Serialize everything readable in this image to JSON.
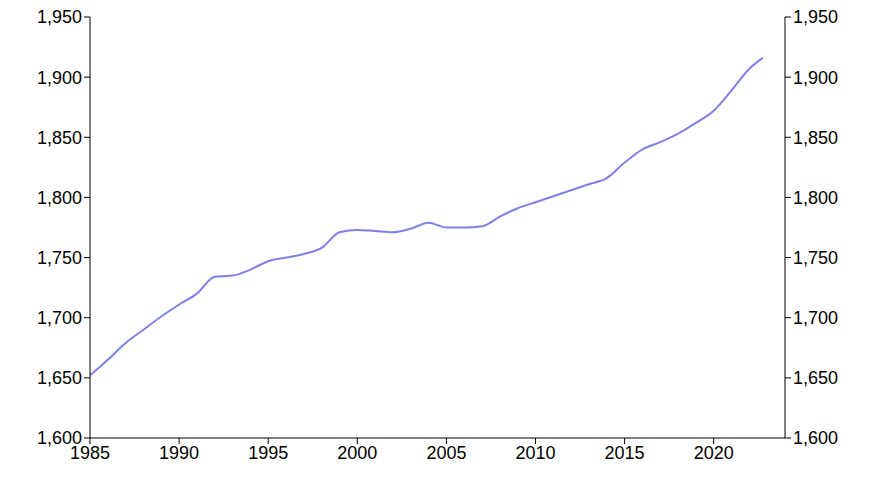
{
  "chart_data": {
    "type": "line",
    "x": [
      1985,
      1986,
      1987,
      1988,
      1989,
      1990,
      1991,
      1992,
      1993,
      1994,
      1995,
      1996,
      1997,
      1998,
      1999,
      2000,
      2001,
      2002,
      2003,
      2004,
      2005,
      2006,
      2007,
      2008,
      2009,
      2010,
      2011,
      2012,
      2013,
      2014,
      2015,
      2016,
      2017,
      2018,
      2019,
      2020,
      2021,
      2022,
      2022.75
    ],
    "values": [
      1652,
      1665,
      1679,
      1690,
      1701,
      1711,
      1720,
      1734,
      1735,
      1740,
      1747,
      1750,
      1753,
      1758,
      1771,
      1773,
      1772,
      1771,
      1774,
      1779,
      1775,
      1775,
      1776,
      1784,
      1791,
      1796,
      1801,
      1806,
      1811,
      1816,
      1829,
      1840,
      1846,
      1853,
      1862,
      1872,
      1889,
      1907,
      1916
    ],
    "color": "#7f7fe8",
    "xlim": [
      1985,
      2024
    ],
    "xticks": [
      1985,
      1990,
      1995,
      2000,
      2005,
      2010,
      2015,
      2020
    ],
    "ylim": [
      1600,
      1950
    ],
    "yticks": [
      {
        "value": 1600,
        "label": "1,600"
      },
      {
        "value": 1650,
        "label": "1,650"
      },
      {
        "value": 1700,
        "label": "1,700"
      },
      {
        "value": 1750,
        "label": "1,750"
      },
      {
        "value": 1800,
        "label": "1,800"
      },
      {
        "value": 1850,
        "label": "1,850"
      },
      {
        "value": 1900,
        "label": "1,900"
      },
      {
        "value": 1950,
        "label": "1,950"
      }
    ],
    "grid": false
  }
}
